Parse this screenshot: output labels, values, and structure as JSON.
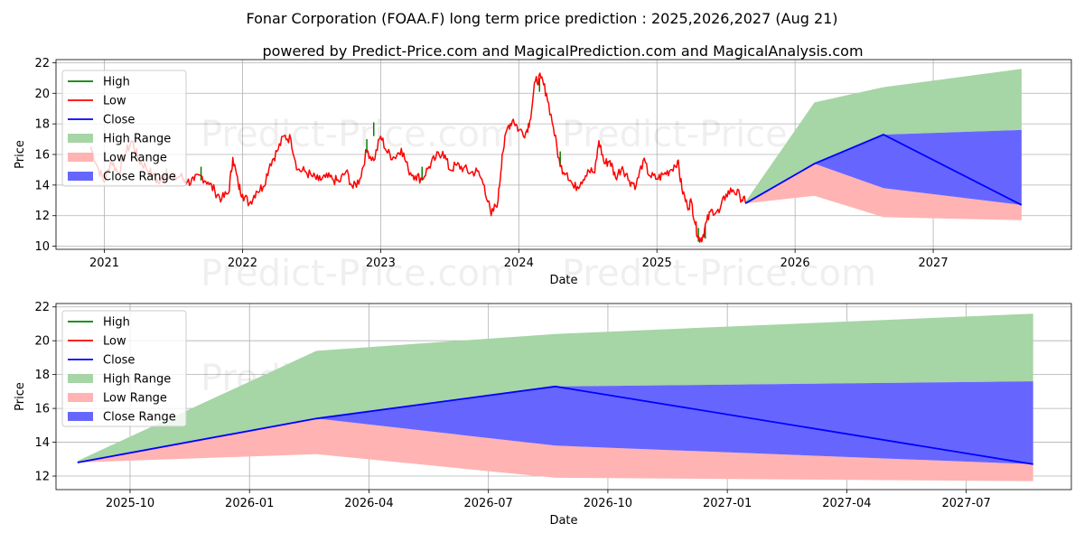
{
  "chart_data": [
    {
      "type": "line",
      "title": "Fonar Corporation (FOAA.F) long term price prediction : 2025,2026,2027 (Aug 21)",
      "subtitle": "powered by Predict-Price.com and MagicalPrediction.com and MagicalAnalysis.com",
      "xlabel": "Date",
      "ylabel": "Price",
      "xlim": [
        2020.65,
        2028.0
      ],
      "ylim": [
        9.8,
        22.2
      ],
      "xticks": [
        2021,
        2022,
        2023,
        2024,
        2025,
        2026,
        2027
      ],
      "xtick_labels": [
        "2021",
        "2022",
        "2023",
        "2024",
        "2025",
        "2026",
        "2027"
      ],
      "yticks": [
        10,
        12,
        14,
        16,
        18,
        20,
        22
      ],
      "grid": true,
      "legend": "top-left",
      "legend_entries": [
        "High",
        "Low",
        "Close",
        "High Range",
        "Low Range",
        "Close Range"
      ],
      "watermark": "Predict-Price.com",
      "history_low_points": [
        [
          2020.9,
          16.5
        ],
        [
          2020.95,
          15.2
        ],
        [
          2021.0,
          14.2
        ],
        [
          2021.05,
          15.6
        ],
        [
          2021.1,
          14.8
        ],
        [
          2021.15,
          16.0
        ],
        [
          2021.2,
          16.9
        ],
        [
          2021.25,
          15.6
        ],
        [
          2021.3,
          15.2
        ],
        [
          2021.35,
          14.6
        ],
        [
          2021.4,
          14.1
        ],
        [
          2021.45,
          14.9
        ],
        [
          2021.5,
          14.4
        ],
        [
          2021.55,
          14.6
        ],
        [
          2021.6,
          14.2
        ],
        [
          2021.65,
          14.3
        ],
        [
          2021.7,
          14.6
        ],
        [
          2021.75,
          14.2
        ],
        [
          2021.8,
          13.6
        ],
        [
          2021.85,
          13.1
        ],
        [
          2021.9,
          13.5
        ],
        [
          2021.93,
          15.8
        ],
        [
          2021.97,
          14.0
        ],
        [
          2022.0,
          13.4
        ],
        [
          2022.05,
          12.8
        ],
        [
          2022.1,
          13.6
        ],
        [
          2022.15,
          13.9
        ],
        [
          2022.2,
          15.4
        ],
        [
          2022.25,
          16.2
        ],
        [
          2022.3,
          17.2
        ],
        [
          2022.35,
          17.0
        ],
        [
          2022.4,
          15.0
        ],
        [
          2022.45,
          14.9
        ],
        [
          2022.5,
          14.6
        ],
        [
          2022.55,
          14.3
        ],
        [
          2022.6,
          14.5
        ],
        [
          2022.65,
          14.4
        ],
        [
          2022.7,
          14.2
        ],
        [
          2022.75,
          14.9
        ],
        [
          2022.8,
          13.8
        ],
        [
          2022.85,
          14.4
        ],
        [
          2022.9,
          16.3
        ],
        [
          2022.95,
          15.6
        ],
        [
          2023.0,
          17.2
        ],
        [
          2023.05,
          16.1
        ],
        [
          2023.1,
          15.8
        ],
        [
          2023.15,
          16.4
        ],
        [
          2023.2,
          15.0
        ],
        [
          2023.25,
          14.6
        ],
        [
          2023.3,
          14.4
        ],
        [
          2023.35,
          15.2
        ],
        [
          2023.4,
          15.8
        ],
        [
          2023.45,
          16.2
        ],
        [
          2023.5,
          15.0
        ],
        [
          2023.55,
          15.3
        ],
        [
          2023.6,
          15.1
        ],
        [
          2023.65,
          14.8
        ],
        [
          2023.7,
          14.9
        ],
        [
          2023.75,
          14.0
        ],
        [
          2023.8,
          12.0
        ],
        [
          2023.85,
          13.0
        ],
        [
          2023.88,
          16.0
        ],
        [
          2023.92,
          17.8
        ],
        [
          2023.96,
          18.3
        ],
        [
          2024.0,
          17.6
        ],
        [
          2024.05,
          17.4
        ],
        [
          2024.08,
          18.2
        ],
        [
          2024.12,
          20.8
        ],
        [
          2024.16,
          21.0
        ],
        [
          2024.2,
          20.0
        ],
        [
          2024.25,
          17.8
        ],
        [
          2024.3,
          15.2
        ],
        [
          2024.35,
          14.8
        ],
        [
          2024.4,
          13.8
        ],
        [
          2024.45,
          14.2
        ],
        [
          2024.5,
          15.0
        ],
        [
          2024.55,
          14.8
        ],
        [
          2024.58,
          16.9
        ],
        [
          2024.62,
          15.4
        ],
        [
          2024.66,
          15.6
        ],
        [
          2024.7,
          14.5
        ],
        [
          2024.75,
          15.2
        ],
        [
          2024.8,
          14.3
        ],
        [
          2024.85,
          14.0
        ],
        [
          2024.9,
          15.6
        ],
        [
          2024.95,
          14.6
        ],
        [
          2025.0,
          14.4
        ],
        [
          2025.05,
          14.7
        ],
        [
          2025.1,
          15.0
        ],
        [
          2025.15,
          15.6
        ],
        [
          2025.18,
          13.8
        ],
        [
          2025.22,
          12.6
        ],
        [
          2025.25,
          12.9
        ],
        [
          2025.28,
          11.4
        ],
        [
          2025.3,
          10.5
        ],
        [
          2025.33,
          10.6
        ],
        [
          2025.36,
          11.6
        ],
        [
          2025.4,
          12.4
        ],
        [
          2025.45,
          12.2
        ],
        [
          2025.5,
          13.4
        ],
        [
          2025.55,
          13.7
        ],
        [
          2025.6,
          13.3
        ],
        [
          2025.64,
          12.85
        ]
      ],
      "history_high_points": [
        [
          2021.45,
          15.1
        ],
        [
          2021.7,
          15.2
        ],
        [
          2022.9,
          17.0
        ],
        [
          2022.95,
          18.1
        ],
        [
          2023.3,
          15.2
        ],
        [
          2024.15,
          21.0
        ],
        [
          2024.3,
          16.2
        ],
        [
          2025.3,
          11.2
        ],
        [
          2025.35,
          11.4
        ]
      ],
      "forecast": {
        "x": [
          2025.64,
          2026.14,
          2026.64,
          2027.64
        ],
        "close": [
          12.8,
          15.4,
          17.3,
          12.7
        ],
        "high_range_upper": [
          12.9,
          19.4,
          20.4,
          21.6
        ],
        "high_range_lower": [
          12.8,
          15.4,
          17.3,
          17.6
        ],
        "low_range_upper": [
          12.85,
          15.4,
          13.8,
          12.7
        ],
        "low_range_lower": [
          12.8,
          13.3,
          11.9,
          11.7
        ],
        "close_range_upper": [
          12.8,
          15.4,
          17.3,
          17.6
        ],
        "close_range_lower": [
          12.8,
          15.4,
          13.8,
          12.7
        ]
      },
      "colors": {
        "high": "#008000",
        "low": "#ff0000",
        "close": "#0000ff",
        "high_range": "#a6d5a6",
        "low_range": "#ffb3b3",
        "close_range": "#6666ff"
      }
    },
    {
      "type": "line",
      "xlabel": "Date",
      "ylabel": "Price",
      "xlim": [
        2025.595,
        2027.72
      ],
      "ylim": [
        11.2,
        22.2
      ],
      "xticks": [
        2025.75,
        2026.0,
        2026.25,
        2026.5,
        2026.75,
        2027.0,
        2027.25,
        2027.5
      ],
      "xtick_labels": [
        "2025-10",
        "2026-01",
        "2026-04",
        "2026-07",
        "2026-10",
        "2027-01",
        "2027-04",
        "2027-07"
      ],
      "yticks": [
        12,
        14,
        16,
        18,
        20,
        22
      ],
      "grid": true,
      "legend": "top-left",
      "legend_entries": [
        "High",
        "Low",
        "Close",
        "High Range",
        "Low Range",
        "Close Range"
      ],
      "watermark": "Predict-Price.com",
      "forecast": {
        "x": [
          2025.64,
          2026.14,
          2026.64,
          2027.64
        ],
        "close": [
          12.8,
          15.4,
          17.3,
          12.7
        ],
        "high_range_upper": [
          12.9,
          19.4,
          20.4,
          21.6
        ],
        "high_range_lower": [
          12.8,
          15.4,
          17.3,
          17.6
        ],
        "low_range_upper": [
          12.85,
          15.4,
          13.8,
          12.7
        ],
        "low_range_lower": [
          12.8,
          13.3,
          11.9,
          11.7
        ],
        "close_range_upper": [
          12.8,
          15.4,
          17.3,
          17.6
        ],
        "close_range_lower": [
          12.8,
          15.4,
          13.8,
          12.7
        ]
      },
      "colors": {
        "high": "#008000",
        "low": "#ff0000",
        "close": "#0000ff",
        "high_range": "#a6d5a6",
        "low_range": "#ffb3b3",
        "close_range": "#6666ff"
      }
    }
  ]
}
